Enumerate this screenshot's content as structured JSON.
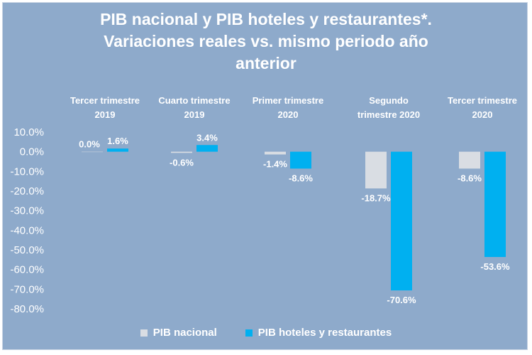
{
  "chart_data": {
    "type": "bar",
    "title_lines": [
      "PIB nacional y PIB hoteles y restaurantes*.",
      "Variaciones reales vs. mismo periodo año",
      "anterior"
    ],
    "categories": [
      [
        "Tercer trimestre",
        "2019"
      ],
      [
        "Cuarto trimestre",
        "2019"
      ],
      [
        "Primer trimestre",
        "2020"
      ],
      [
        "Segundo",
        "trimestre 2020"
      ],
      [
        "Tercer trimestre",
        "2020"
      ]
    ],
    "series": [
      {
        "name": "PIB nacional",
        "color": "#d9dde3",
        "values": [
          0.0,
          -0.6,
          -1.4,
          -18.7,
          -8.6
        ],
        "labels": [
          "0.0%",
          "-0.6%",
          "-1.4%",
          "-18.7%",
          "-8.6%"
        ]
      },
      {
        "name": "PIB hoteles y restaurantes",
        "color": "#00b0f0",
        "values": [
          1.6,
          3.4,
          -8.6,
          -70.6,
          -53.6
        ],
        "labels": [
          "1.6%",
          "3.4%",
          "-8.6%",
          "-70.6%",
          "-53.6%"
        ]
      }
    ],
    "ylim": [
      -80,
      10
    ],
    "yticks": [
      10,
      0,
      -10,
      -20,
      -30,
      -40,
      -50,
      -60,
      -70,
      -80
    ],
    "ytick_labels": [
      "10.0%",
      "0.0%",
      "-10.0%",
      "-20.0%",
      "-30.0%",
      "-40.0%",
      "-50.0%",
      "-60.0%",
      "-70.0%",
      "-80.0%"
    ],
    "xlabel": "",
    "ylabel": "",
    "grid": false,
    "legend": "bottom"
  },
  "colors": {
    "background": "#8eaacb",
    "text": "#ffffff"
  }
}
